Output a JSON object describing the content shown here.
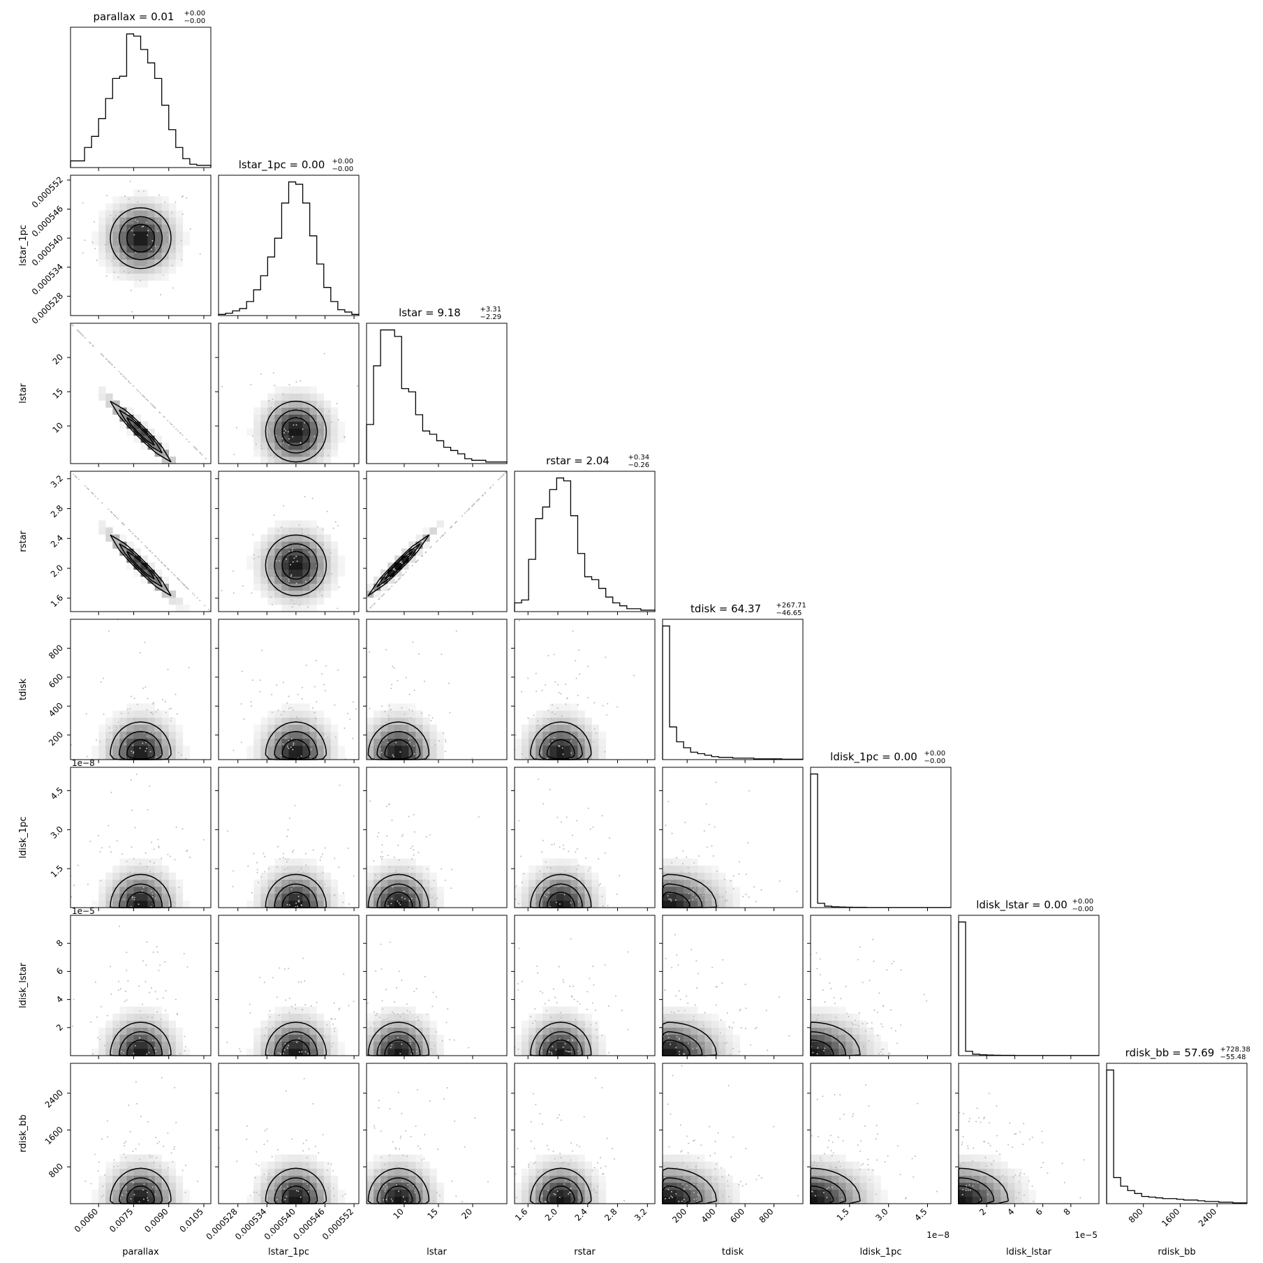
{
  "chart_data": {
    "type": "corner",
    "params": [
      {
        "name": "parallax",
        "label": "parallax",
        "range": [
          0.0048,
          0.0108
        ],
        "ticks": [
          0.006,
          0.0075,
          0.009,
          0.0105
        ],
        "tick_labels": [
          "0.0060",
          "0.0075",
          "0.0090",
          "0.0105"
        ],
        "offset": "",
        "title": "parallax = 0.01",
        "title_sup": "+0.00",
        "title_sub": "−0.00",
        "median": 0.0078,
        "hist": [
          3,
          3,
          9,
          14,
          22,
          31,
          40,
          41,
          60,
          59,
          53,
          47,
          40,
          28,
          17,
          9,
          4,
          1.5,
          1,
          1
        ]
      },
      {
        "name": "lstar_1pc",
        "label": "lstar_1pc",
        "range": [
          0.000524,
          0.000553
        ],
        "ticks": [
          0.000528,
          0.000534,
          0.00054,
          0.000546,
          0.000552
        ],
        "tick_labels": [
          "0.000528",
          "0.000534",
          "0.000540",
          "0.000546",
          "0.000552"
        ],
        "offset": "",
        "title": "lstar_1pc = 0.00",
        "title_sup": "+0.00",
        "title_sub": "−0.00",
        "median": 0.00054,
        "hist": [
          0.5,
          1,
          2,
          3,
          6,
          11,
          17,
          25,
          33,
          48,
          57,
          56,
          48,
          34,
          22,
          12,
          6,
          2.5,
          1.5,
          0.5
        ]
      },
      {
        "name": "lstar",
        "label": "lstar",
        "range": [
          4.5,
          25.0
        ],
        "ticks": [
          10,
          15,
          20
        ],
        "tick_labels": [
          "10",
          "15",
          "20"
        ],
        "offset": "",
        "title": "lstar = 9.18",
        "title_sup": "+3.31",
        "title_sub": "−2.29",
        "median": 9.18,
        "hist": [
          12,
          30,
          41,
          41,
          39,
          23,
          22,
          15,
          10,
          9,
          7,
          5,
          4,
          3,
          1.5,
          1,
          1,
          0.5,
          0.5,
          0.5
        ]
      },
      {
        "name": "rstar",
        "label": "rstar",
        "range": [
          1.42,
          3.3
        ],
        "ticks": [
          1.6,
          2.0,
          2.4,
          2.8,
          3.2
        ],
        "tick_labels": [
          "1.6",
          "2.0",
          "2.4",
          "2.8",
          "3.2"
        ],
        "offset": "",
        "title": "rstar = 2.04",
        "title_sup": "+0.34",
        "title_sub": "−0.26",
        "median": 2.04,
        "hist": [
          3,
          4,
          18,
          32,
          36,
          42,
          46,
          45,
          33,
          20,
          12,
          11,
          8,
          5,
          3,
          2,
          1,
          1,
          0.5,
          0.5
        ]
      },
      {
        "name": "tdisk",
        "label": "tdisk",
        "range": [
          30,
          1000
        ],
        "ticks": [
          200,
          400,
          600,
          800
        ],
        "tick_labels": [
          "200",
          "400",
          "600",
          "800"
        ],
        "offset": "",
        "title": "tdisk = 64.37",
        "title_sup": "+267.71",
        "title_sub": "−46.65",
        "median": 64.37,
        "hist": [
          90,
          22,
          12,
          8,
          5,
          4,
          3,
          2,
          1.5,
          1.5,
          1,
          1,
          1,
          0.5,
          0.5,
          0.5,
          0.5,
          0.3,
          0.3,
          0.3
        ]
      },
      {
        "name": "ldisk_1pc",
        "label": "ldisk_1pc",
        "range": [
          0,
          5.4
        ],
        "ticks": [
          1.5,
          3.0,
          4.5
        ],
        "tick_labels": [
          "1.5",
          "3.0",
          "4.5"
        ],
        "offset": "1e−8",
        "title": "ldisk_1pc = 0.00",
        "title_sup": "+0.00",
        "title_sub": "−0.00",
        "median": 0.02,
        "hist": [
          92,
          3,
          1,
          0.6,
          0.4,
          0.3,
          0.2,
          0.2,
          0.1,
          0.1,
          0.1,
          0.1,
          0.1,
          0.1,
          0.1,
          0.1,
          0.1,
          0.1,
          0.1,
          0.1
        ]
      },
      {
        "name": "ldisk_lstar",
        "label": "ldisk_lstar",
        "range": [
          0,
          10.0
        ],
        "ticks": [
          2,
          4,
          6,
          8
        ],
        "tick_labels": [
          "2",
          "4",
          "6",
          "8"
        ],
        "offset": "1e−5",
        "title": "ldisk_lstar = 0.00",
        "title_sup": "+0.00",
        "title_sub": "−0.00",
        "median": 0.05,
        "hist": [
          92,
          3,
          1,
          0.6,
          0.4,
          0.3,
          0.2,
          0.2,
          0.1,
          0.1,
          0.1,
          0.1,
          0.1,
          0.1,
          0.1,
          0.1,
          0.1,
          0.1,
          0.1,
          0.1
        ]
      },
      {
        "name": "rdisk_bb",
        "label": "rdisk_bb",
        "range": [
          0,
          3050
        ],
        "ticks": [
          800,
          1600,
          2400
        ],
        "tick_labels": [
          "800",
          "1600",
          "2400"
        ],
        "offset": "",
        "title": "rdisk_bb = 57.69",
        "title_sup": "+728.38",
        "title_sub": "−55.48",
        "median": 57.69,
        "hist": [
          92,
          18,
          12,
          9,
          7,
          5,
          4.5,
          4,
          3.5,
          3.5,
          3,
          2.5,
          2.5,
          2,
          1.5,
          1.5,
          1,
          1,
          0.5,
          0.5
        ]
      }
    ],
    "hist_type": "step",
    "bins": 20,
    "contours": true,
    "grid": false
  }
}
